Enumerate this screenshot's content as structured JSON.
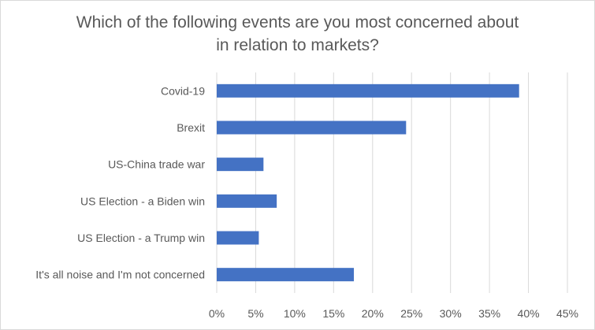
{
  "chart_data": {
    "type": "bar",
    "orientation": "horizontal",
    "title_lines": [
      "Which of the following events are you most concerned about",
      "in relation to markets?"
    ],
    "categories": [
      "Covid-19",
      "Brexit",
      "US-China trade war",
      "US Election - a Biden win",
      "US Election - a Trump win",
      "It's all noise and I'm not concerned"
    ],
    "values": [
      38.8,
      24.3,
      6.0,
      7.7,
      5.4,
      17.6
    ],
    "xlim": [
      0,
      45
    ],
    "xticks": [
      0,
      5,
      10,
      15,
      20,
      25,
      30,
      35,
      40,
      45
    ],
    "xtick_labels": [
      "0%",
      "5%",
      "10%",
      "15%",
      "20%",
      "25%",
      "30%",
      "35%",
      "40%",
      "45%"
    ],
    "grid": true,
    "bar_color": "#4472c4",
    "grid_color": "#d9d9d9",
    "xlabel": "",
    "ylabel": ""
  }
}
